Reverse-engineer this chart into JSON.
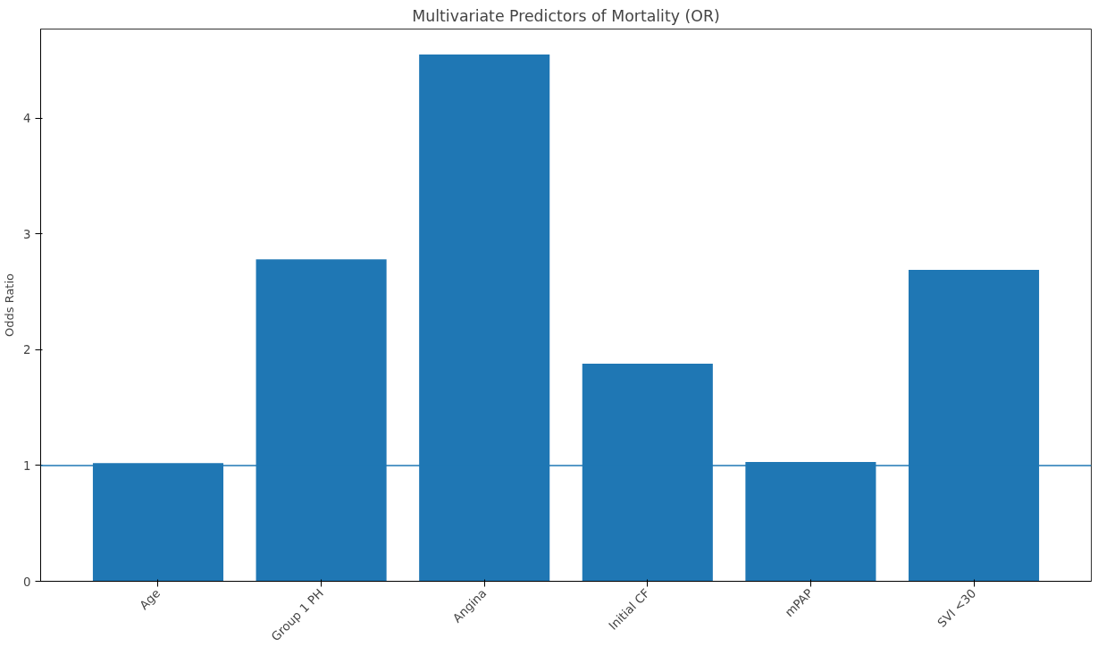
{
  "chart_data": {
    "type": "bar",
    "title": "Multivariate Predictors of Mortality (OR)",
    "ylabel": "Odds Ratio",
    "categories": [
      "Age",
      "Group 1 PH",
      "Angina",
      "Initial CF",
      "mPAP",
      "SVI <30"
    ],
    "values": [
      1.02,
      2.78,
      4.55,
      1.88,
      1.03,
      2.69
    ],
    "color": "#1f77b4",
    "ylim": [
      0,
      4.77
    ],
    "yticks": [
      0,
      1,
      2,
      3,
      4
    ],
    "ref_lines": [
      {
        "axis": "y",
        "value": 1,
        "color": "#1f77b4"
      }
    ],
    "grid": false
  }
}
